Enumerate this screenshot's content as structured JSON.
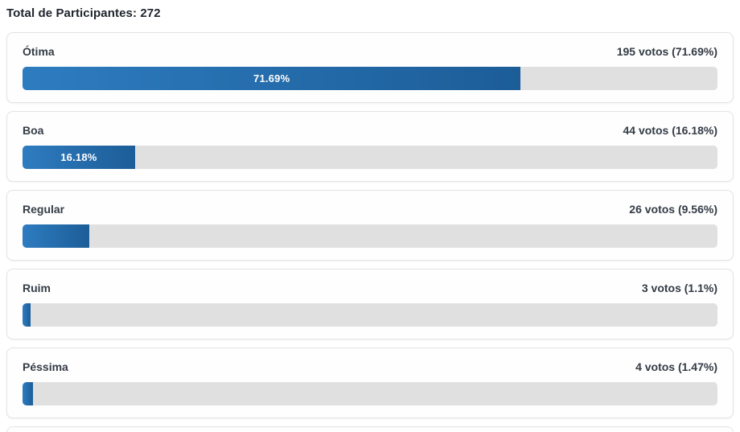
{
  "header": {
    "title": "Total de Participantes: 272",
    "total_participants": 272
  },
  "options": [
    {
      "label": "Ótima",
      "votes": 195,
      "percent": 71.69,
      "votes_text": "195 votos (71.69%)",
      "bar_label": "71.69%"
    },
    {
      "label": "Boa",
      "votes": 44,
      "percent": 16.18,
      "votes_text": "44 votos (16.18%)",
      "bar_label": "16.18%"
    },
    {
      "label": "Regular",
      "votes": 26,
      "percent": 9.56,
      "votes_text": "26 votos (9.56%)",
      "bar_label": ""
    },
    {
      "label": "Ruim",
      "votes": 3,
      "percent": 1.1,
      "votes_text": "3 votos (1.1%)",
      "bar_label": ""
    },
    {
      "label": "Péssima",
      "votes": 4,
      "percent": 1.47,
      "votes_text": "4 votos (1.47%)",
      "bar_label": ""
    }
  ],
  "colors": {
    "bar_gradient_start": "#2e7cc0",
    "bar_gradient_end": "#1c5d98",
    "bar_track": "#e0e0e0",
    "card_border": "#e3e3e3",
    "text_dark": "#2b333d"
  },
  "chart_data": {
    "type": "bar",
    "orientation": "horizontal",
    "title": "Total de Participantes: 272",
    "categories": [
      "Ótima",
      "Boa",
      "Regular",
      "Ruim",
      "Péssima"
    ],
    "values": [
      195,
      44,
      26,
      3,
      4
    ],
    "percentages": [
      71.69,
      16.18,
      9.56,
      1.1,
      1.47
    ],
    "total_votes": 272,
    "value_labels": [
      "195 votos (71.69%)",
      "44 votos (16.18%)",
      "26 votos (9.56%)",
      "3 votos (1.1%)",
      "4 votos (1.47%)"
    ],
    "xlim": [
      0,
      100
    ],
    "grid": false,
    "legend": false
  }
}
